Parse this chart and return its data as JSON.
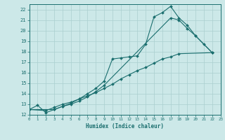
{
  "xlabel": "Humidex (Indice chaleur)",
  "background_color": "#cce8e8",
  "grid_color": "#aacfcf",
  "line_color": "#1a6e6e",
  "xlim": [
    0,
    23
  ],
  "ylim": [
    12,
    22.5
  ],
  "ytick_labels": [
    "12",
    "13",
    "14",
    "15",
    "16",
    "17",
    "18",
    "19",
    "20",
    "21",
    "22"
  ],
  "ytick_vals": [
    12,
    13,
    14,
    15,
    16,
    17,
    18,
    19,
    20,
    21,
    22
  ],
  "xtick_vals": [
    0,
    1,
    2,
    3,
    4,
    5,
    6,
    7,
    8,
    9,
    10,
    11,
    12,
    13,
    14,
    15,
    16,
    17,
    18,
    19,
    20,
    21,
    22,
    23
  ],
  "curve_top_x": [
    0,
    1,
    2,
    3,
    4,
    5,
    6,
    7,
    8,
    9,
    10,
    11,
    12,
    13,
    14,
    15,
    16,
    17,
    18,
    19,
    20,
    21,
    22
  ],
  "curve_top_y": [
    12.5,
    12.9,
    12.2,
    12.5,
    12.8,
    13.1,
    13.5,
    14.0,
    14.5,
    15.2,
    17.3,
    17.4,
    17.5,
    17.6,
    18.7,
    21.3,
    21.7,
    22.3,
    21.2,
    20.5,
    19.5,
    18.7,
    17.9
  ],
  "curve_mid_x": [
    0,
    3,
    4,
    5,
    6,
    7,
    8,
    9,
    17,
    18,
    19,
    20,
    22
  ],
  "curve_mid_y": [
    12.5,
    12.5,
    12.8,
    13.0,
    13.3,
    13.7,
    14.2,
    14.8,
    21.2,
    21.0,
    20.2,
    19.5,
    17.9
  ],
  "curve_bot_x": [
    0,
    2,
    3,
    4,
    5,
    6,
    7,
    8,
    9,
    10,
    11,
    12,
    13,
    14,
    15,
    16,
    17,
    18,
    22
  ],
  "curve_bot_y": [
    12.5,
    12.4,
    12.7,
    13.0,
    13.2,
    13.5,
    13.8,
    14.1,
    14.5,
    14.9,
    15.4,
    15.8,
    16.2,
    16.5,
    16.9,
    17.3,
    17.5,
    17.8,
    17.9
  ]
}
